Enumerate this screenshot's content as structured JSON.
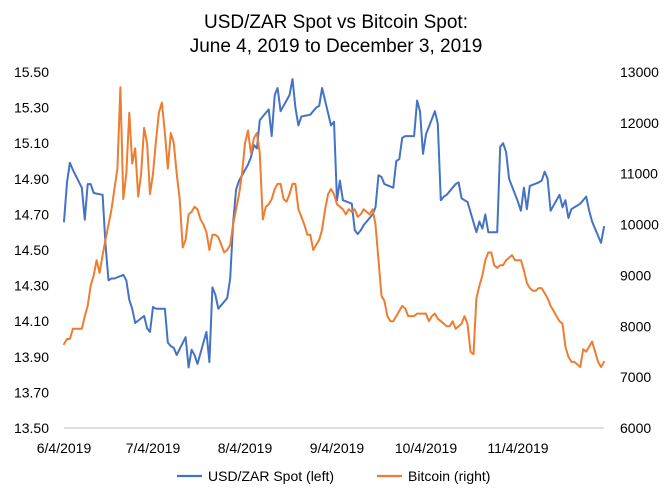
{
  "chart_data": {
    "type": "line",
    "title_line1": "USD/ZAR Spot vs Bitcoin Spot:",
    "title_line2": "June 4, 2019 to December 3, 2019",
    "x_tick_labels": [
      "6/4/2019",
      "7/4/2019",
      "8/4/2019",
      "9/4/2019",
      "10/4/2019",
      "11/4/2019"
    ],
    "x_range": [
      "2019-06-04",
      "2019-12-03"
    ],
    "y_left": {
      "range": [
        13.5,
        15.5
      ],
      "tick_labels": [
        "15.50",
        "15.30",
        "15.10",
        "14.90",
        "14.70",
        "14.50",
        "14.30",
        "14.10",
        "13.90",
        "13.70",
        "13.50"
      ]
    },
    "y_right": {
      "range": [
        6000,
        13000
      ],
      "tick_labels": [
        "13000",
        "12000",
        "11000",
        "10000",
        "9000",
        "8000",
        "7000",
        "6000"
      ]
    },
    "grid": false,
    "legend_position": "bottom",
    "series": [
      {
        "name": "USD/ZAR Spot (left)",
        "axis": "left",
        "color": "#4472C4",
        "x": [
          "2019-06-04",
          "2019-06-05",
          "2019-06-06",
          "2019-06-07",
          "2019-06-10",
          "2019-06-11",
          "2019-06-12",
          "2019-06-13",
          "2019-06-14",
          "2019-06-17",
          "2019-06-18",
          "2019-06-19",
          "2019-06-20",
          "2019-06-21",
          "2019-06-24",
          "2019-06-25",
          "2019-06-26",
          "2019-06-27",
          "2019-06-28",
          "2019-07-01",
          "2019-07-02",
          "2019-07-03",
          "2019-07-04",
          "2019-07-05",
          "2019-07-08",
          "2019-07-09",
          "2019-07-10",
          "2019-07-11",
          "2019-07-12",
          "2019-07-15",
          "2019-07-16",
          "2019-07-17",
          "2019-07-18",
          "2019-07-19",
          "2019-07-22",
          "2019-07-23",
          "2019-07-24",
          "2019-07-25",
          "2019-07-26",
          "2019-07-29",
          "2019-07-30",
          "2019-07-31",
          "2019-08-01",
          "2019-08-02",
          "2019-08-05",
          "2019-08-06",
          "2019-08-07",
          "2019-08-08",
          "2019-08-09",
          "2019-08-12",
          "2019-08-13",
          "2019-08-14",
          "2019-08-15",
          "2019-08-16",
          "2019-08-19",
          "2019-08-20",
          "2019-08-21",
          "2019-08-22",
          "2019-08-23",
          "2019-08-26",
          "2019-08-27",
          "2019-08-28",
          "2019-08-29",
          "2019-08-30",
          "2019-09-02",
          "2019-09-03",
          "2019-09-04",
          "2019-09-05",
          "2019-09-06",
          "2019-09-09",
          "2019-09-10",
          "2019-09-11",
          "2019-09-12",
          "2019-09-13",
          "2019-09-16",
          "2019-09-17",
          "2019-09-18",
          "2019-09-19",
          "2019-09-20",
          "2019-09-23",
          "2019-09-24",
          "2019-09-25",
          "2019-09-26",
          "2019-09-27",
          "2019-09-30",
          "2019-10-01",
          "2019-10-02",
          "2019-10-03",
          "2019-10-04",
          "2019-10-07",
          "2019-10-08",
          "2019-10-09",
          "2019-10-10",
          "2019-10-11",
          "2019-10-14",
          "2019-10-15",
          "2019-10-16",
          "2019-10-17",
          "2019-10-18",
          "2019-10-21",
          "2019-10-22",
          "2019-10-23",
          "2019-10-24",
          "2019-10-25",
          "2019-10-28",
          "2019-10-29",
          "2019-10-30",
          "2019-10-31",
          "2019-11-01",
          "2019-11-04",
          "2019-11-05",
          "2019-11-06",
          "2019-11-07",
          "2019-11-08",
          "2019-11-11",
          "2019-11-12",
          "2019-11-13",
          "2019-11-14",
          "2019-11-15",
          "2019-11-18",
          "2019-11-19",
          "2019-11-20",
          "2019-11-21",
          "2019-11-22",
          "2019-11-25",
          "2019-11-26",
          "2019-11-27",
          "2019-11-28",
          "2019-11-29",
          "2019-12-02",
          "2019-12-03"
        ],
        "y": [
          14.66,
          14.88,
          14.99,
          14.95,
          14.85,
          14.67,
          14.87,
          14.87,
          14.82,
          14.81,
          14.53,
          14.33,
          14.34,
          14.34,
          14.36,
          14.33,
          14.22,
          14.17,
          14.09,
          14.13,
          14.06,
          14.04,
          14.18,
          14.17,
          14.17,
          13.98,
          13.96,
          13.95,
          13.91,
          14.01,
          13.84,
          13.94,
          13.91,
          13.86,
          14.04,
          13.87,
          14.29,
          14.25,
          14.17,
          14.23,
          14.34,
          14.65,
          14.84,
          14.89,
          14.98,
          15.02,
          15.09,
          15.07,
          15.23,
          15.29,
          15.14,
          15.37,
          15.41,
          15.28,
          15.37,
          15.46,
          15.3,
          15.2,
          15.25,
          15.26,
          15.28,
          15.3,
          15.31,
          15.41,
          15.2,
          15.22,
          14.78,
          14.89,
          14.78,
          14.76,
          14.61,
          14.59,
          14.61,
          14.64,
          14.7,
          14.74,
          14.92,
          14.91,
          14.87,
          14.85,
          15.0,
          15.01,
          15.13,
          15.14,
          15.14,
          15.34,
          15.28,
          15.04,
          15.15,
          15.28,
          15.21,
          14.78,
          14.8,
          14.81,
          14.87,
          14.88,
          14.79,
          14.78,
          14.77,
          14.6,
          14.66,
          14.62,
          14.7,
          14.6,
          14.6,
          15.08,
          15.1,
          15.05,
          14.9,
          14.77,
          14.72,
          14.85,
          14.73,
          14.86,
          14.88,
          14.89,
          14.94,
          14.9,
          14.72,
          14.81,
          14.74,
          14.78,
          14.68,
          14.73,
          14.76,
          14.78,
          14.8,
          14.72,
          14.66,
          14.54,
          14.63
        ]
      },
      {
        "name": "Bitcoin (right)",
        "axis": "right",
        "color": "#ED7D31",
        "x": [
          "2019-06-04",
          "2019-06-05",
          "2019-06-06",
          "2019-06-07",
          "2019-06-08",
          "2019-06-09",
          "2019-06-10",
          "2019-06-11",
          "2019-06-12",
          "2019-06-13",
          "2019-06-14",
          "2019-06-15",
          "2019-06-16",
          "2019-06-17",
          "2019-06-18",
          "2019-06-19",
          "2019-06-20",
          "2019-06-21",
          "2019-06-22",
          "2019-06-23",
          "2019-06-24",
          "2019-06-25",
          "2019-06-26",
          "2019-06-27",
          "2019-06-28",
          "2019-06-29",
          "2019-06-30",
          "2019-07-01",
          "2019-07-02",
          "2019-07-03",
          "2019-07-04",
          "2019-07-05",
          "2019-07-06",
          "2019-07-07",
          "2019-07-08",
          "2019-07-09",
          "2019-07-10",
          "2019-07-11",
          "2019-07-12",
          "2019-07-13",
          "2019-07-14",
          "2019-07-15",
          "2019-07-16",
          "2019-07-17",
          "2019-07-18",
          "2019-07-19",
          "2019-07-20",
          "2019-07-21",
          "2019-07-22",
          "2019-07-23",
          "2019-07-24",
          "2019-07-25",
          "2019-07-26",
          "2019-07-27",
          "2019-07-28",
          "2019-07-29",
          "2019-07-30",
          "2019-07-31",
          "2019-08-01",
          "2019-08-02",
          "2019-08-03",
          "2019-08-04",
          "2019-08-05",
          "2019-08-06",
          "2019-08-07",
          "2019-08-08",
          "2019-08-09",
          "2019-08-10",
          "2019-08-11",
          "2019-08-12",
          "2019-08-13",
          "2019-08-14",
          "2019-08-15",
          "2019-08-16",
          "2019-08-17",
          "2019-08-18",
          "2019-08-19",
          "2019-08-20",
          "2019-08-21",
          "2019-08-22",
          "2019-08-23",
          "2019-08-24",
          "2019-08-25",
          "2019-08-26",
          "2019-08-27",
          "2019-08-28",
          "2019-08-29",
          "2019-08-30",
          "2019-08-31",
          "2019-09-01",
          "2019-09-02",
          "2019-09-03",
          "2019-09-04",
          "2019-09-05",
          "2019-09-06",
          "2019-09-07",
          "2019-09-08",
          "2019-09-09",
          "2019-09-10",
          "2019-09-11",
          "2019-09-12",
          "2019-09-13",
          "2019-09-14",
          "2019-09-15",
          "2019-09-16",
          "2019-09-17",
          "2019-09-18",
          "2019-09-19",
          "2019-09-20",
          "2019-09-21",
          "2019-09-22",
          "2019-09-23",
          "2019-09-24",
          "2019-09-25",
          "2019-09-26",
          "2019-09-27",
          "2019-09-28",
          "2019-09-29",
          "2019-09-30",
          "2019-10-01",
          "2019-10-02",
          "2019-10-03",
          "2019-10-04",
          "2019-10-05",
          "2019-10-06",
          "2019-10-07",
          "2019-10-08",
          "2019-10-09",
          "2019-10-10",
          "2019-10-11",
          "2019-10-12",
          "2019-10-13",
          "2019-10-14",
          "2019-10-15",
          "2019-10-16",
          "2019-10-17",
          "2019-10-18",
          "2019-10-19",
          "2019-10-20",
          "2019-10-21",
          "2019-10-22",
          "2019-10-23",
          "2019-10-24",
          "2019-10-25",
          "2019-10-26",
          "2019-10-27",
          "2019-10-28",
          "2019-10-29",
          "2019-10-30",
          "2019-10-31",
          "2019-11-01",
          "2019-11-02",
          "2019-11-03",
          "2019-11-04",
          "2019-11-05",
          "2019-11-06",
          "2019-11-07",
          "2019-11-08",
          "2019-11-09",
          "2019-11-10",
          "2019-11-11",
          "2019-11-12",
          "2019-11-13",
          "2019-11-14",
          "2019-11-15",
          "2019-11-16",
          "2019-11-17",
          "2019-11-18",
          "2019-11-19",
          "2019-11-20",
          "2019-11-21",
          "2019-11-22",
          "2019-11-23",
          "2019-11-24",
          "2019-11-25",
          "2019-11-26",
          "2019-11-27",
          "2019-11-28",
          "2019-11-29",
          "2019-11-30",
          "2019-12-01",
          "2019-12-02",
          "2019-12-03"
        ],
        "y": [
          7650,
          7750,
          7750,
          7950,
          7950,
          7950,
          7950,
          8200,
          8400,
          8800,
          9000,
          9300,
          9050,
          9400,
          9700,
          10000,
          10300,
          10700,
          11100,
          12700,
          10500,
          11000,
          12200,
          11200,
          11500,
          10550,
          11000,
          11900,
          11600,
          10600,
          11000,
          11650,
          12200,
          12400,
          11800,
          11100,
          11800,
          11600,
          11000,
          10500,
          9550,
          9700,
          10200,
          10250,
          10350,
          10300,
          10100,
          10000,
          9850,
          9500,
          9800,
          9800,
          9750,
          9600,
          9450,
          9500,
          9600,
          10000,
          10300,
          10600,
          11000,
          11600,
          11850,
          11400,
          11700,
          11800,
          11400,
          10100,
          10350,
          10400,
          10500,
          10700,
          10800,
          10800,
          10500,
          10450,
          10600,
          10800,
          10800,
          10300,
          10150,
          10000,
          9800,
          9800,
          9500,
          9600,
          9700,
          9900,
          10300,
          10600,
          10700,
          10600,
          10400,
          10350,
          10300,
          10200,
          10300,
          10250,
          10300,
          10150,
          10200,
          10300,
          10250,
          10200,
          10300,
          10000,
          9300,
          8600,
          8500,
          8200,
          8100,
          8100,
          8200,
          8300,
          8400,
          8350,
          8200,
          8200,
          8200,
          8250,
          8250,
          8250,
          8250,
          8100,
          8200,
          8250,
          8150,
          8100,
          8050,
          8000,
          8000,
          8100,
          7950,
          8000,
          8050,
          8200,
          8050,
          7500,
          7450,
          8550,
          8800,
          9000,
          9300,
          9450,
          9450,
          9200,
          9150,
          9200,
          9200,
          9300,
          9350,
          9400,
          9300,
          9300,
          9300,
          9100,
          8850,
          8750,
          8700,
          8700,
          8750,
          8750,
          8650,
          8550,
          8400,
          8300,
          8200,
          8100,
          8050,
          7600,
          7400,
          7300,
          7300,
          7250,
          7200,
          7550,
          7500,
          7600,
          7700,
          7500,
          7300,
          7200,
          7300
        ]
      }
    ]
  }
}
